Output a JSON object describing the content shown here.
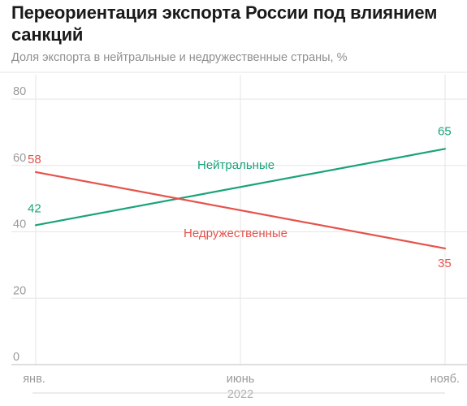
{
  "title": "Переориентация экспорта России под влиянием санкций",
  "subtitle": "Доля экспорта в нейтральные и недружественные страны, %",
  "chart_data": {
    "type": "line",
    "x": [
      "янв.",
      "июнь",
      "нояб."
    ],
    "x_positions": [
      0,
      5,
      10
    ],
    "year_label": "2022",
    "ylim": [
      0,
      80
    ],
    "yticks": [
      0,
      20,
      40,
      60,
      80
    ],
    "grid": true,
    "series": [
      {
        "name": "Нейтральные",
        "color": "#1aa37a",
        "points": [
          {
            "x": 0,
            "y": 42
          },
          {
            "x": 10,
            "y": 65
          }
        ],
        "start_label": "42",
        "end_label": "65"
      },
      {
        "name": "Недружественные",
        "color": "#e5534b",
        "points": [
          {
            "x": 0,
            "y": 58
          },
          {
            "x": 10,
            "y": 35
          }
        ],
        "start_label": "58",
        "end_label": "35"
      }
    ]
  }
}
